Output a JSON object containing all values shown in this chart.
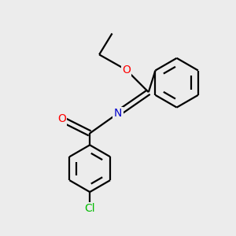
{
  "background_color": "#ececec",
  "bond_color": "#000000",
  "atom_colors": {
    "O": "#ff0000",
    "N": "#0000cc",
    "Cl": "#00bb00",
    "C": "#000000"
  },
  "figsize": [
    3.0,
    3.0
  ],
  "dpi": 100,
  "xlim": [
    0,
    10
  ],
  "ylim": [
    0,
    10
  ]
}
